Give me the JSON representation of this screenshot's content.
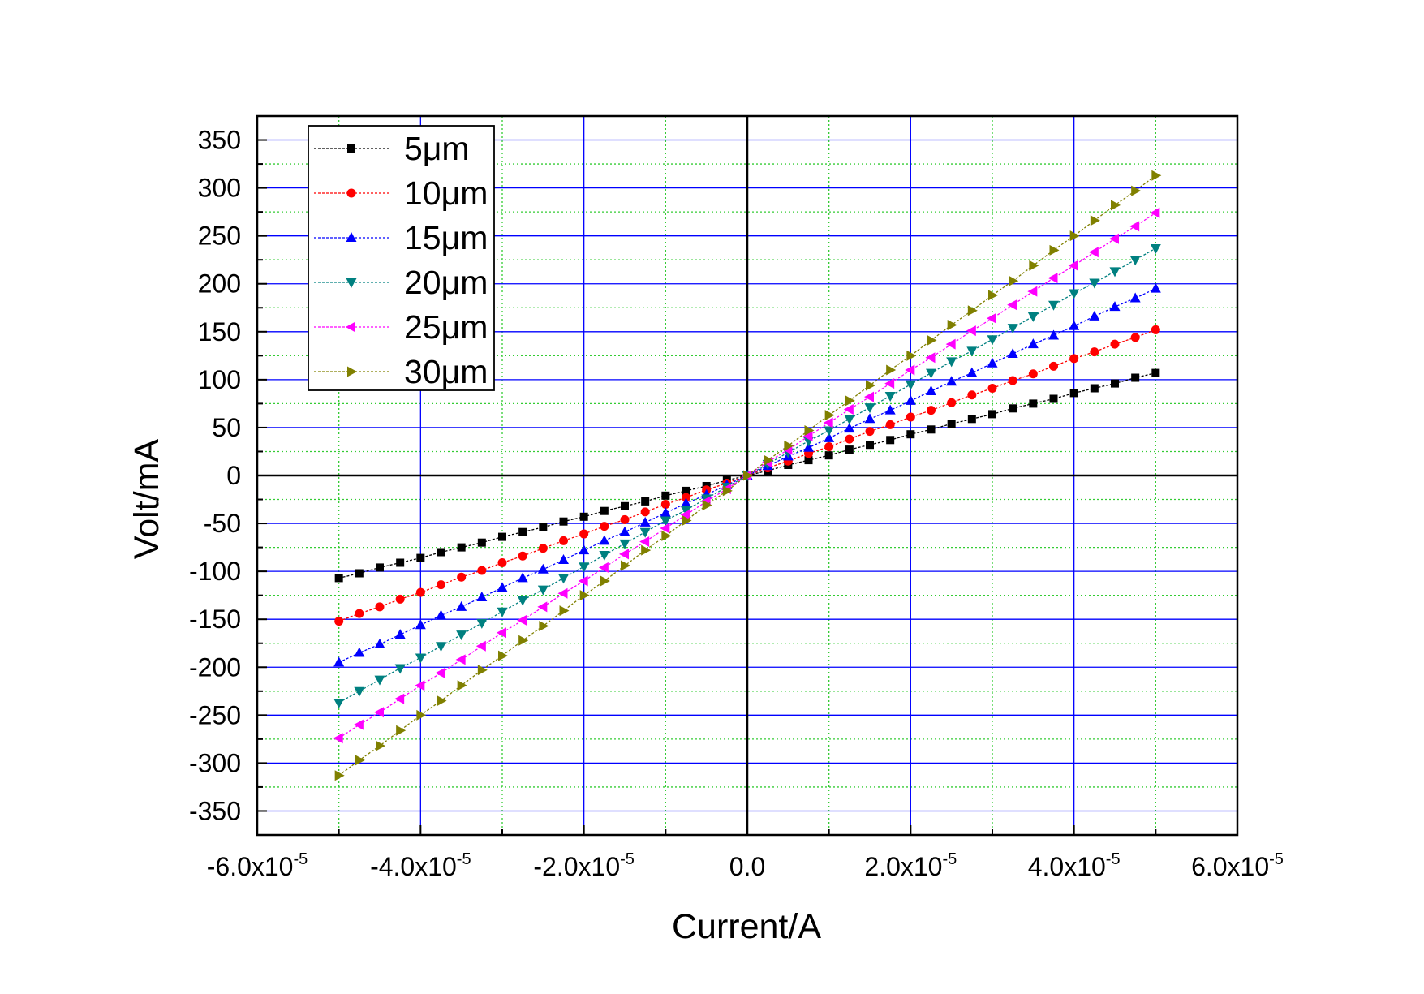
{
  "chart_data": {
    "type": "line",
    "xlabel": "Current/A",
    "ylabel": "Volt/mA",
    "xlim": [
      -6e-05,
      6e-05
    ],
    "ylim": [
      -375,
      375
    ],
    "xscale": "linear",
    "yscale": "linear",
    "grid": {
      "major": true,
      "minor": true
    },
    "legend": "top-left",
    "colors": {
      "major_grid": "#0000ff",
      "minor_grid": "#33cc33",
      "axis": "#000000"
    },
    "xticks": [
      {
        "value": -6e-05,
        "base": "-6.0x10",
        "exp": "-5"
      },
      {
        "value": -4e-05,
        "base": "-4.0x10",
        "exp": "-5"
      },
      {
        "value": -2e-05,
        "base": "-2.0x10",
        "exp": "-5"
      },
      {
        "value": 0,
        "base": "0.0",
        "exp": ""
      },
      {
        "value": 2e-05,
        "base": "2.0x10",
        "exp": "-5"
      },
      {
        "value": 4e-05,
        "base": "4.0x10",
        "exp": "-5"
      },
      {
        "value": 6e-05,
        "base": "6.0x10",
        "exp": "-5"
      }
    ],
    "yticks": [
      {
        "value": 350,
        "label": "350"
      },
      {
        "value": 300,
        "label": "300"
      },
      {
        "value": 250,
        "label": "250"
      },
      {
        "value": 200,
        "label": "200"
      },
      {
        "value": 150,
        "label": "150"
      },
      {
        "value": 100,
        "label": "100"
      },
      {
        "value": 50,
        "label": "50"
      },
      {
        "value": 0,
        "label": "0"
      },
      {
        "value": -50,
        "label": "-50"
      },
      {
        "value": -100,
        "label": "-100"
      },
      {
        "value": -150,
        "label": "-150"
      },
      {
        "value": -200,
        "label": "-200"
      },
      {
        "value": -250,
        "label": "-250"
      },
      {
        "value": -300,
        "label": "-300"
      },
      {
        "value": -350,
        "label": "-350"
      }
    ],
    "x": [
      -5e-05,
      -4.75e-05,
      -4.5e-05,
      -4.25e-05,
      -4e-05,
      -3.75e-05,
      -3.5e-05,
      -3.25e-05,
      -3e-05,
      -2.75e-05,
      -2.5e-05,
      -2.25e-05,
      -2e-05,
      -1.75e-05,
      -1.5e-05,
      -1.25e-05,
      -1e-05,
      -7.5e-06,
      -5e-06,
      -2.5e-06,
      0,
      2.5e-06,
      5e-06,
      7.5e-06,
      1e-05,
      1.25e-05,
      1.5e-05,
      1.75e-05,
      2e-05,
      2.25e-05,
      2.5e-05,
      2.75e-05,
      3e-05,
      3.25e-05,
      3.5e-05,
      3.75e-05,
      4e-05,
      4.25e-05,
      4.5e-05,
      4.75e-05,
      5e-05
    ],
    "series": [
      {
        "name": "5μm",
        "color": "#000000",
        "marker": "square",
        "values": [
          -107,
          -102,
          -96,
          -91,
          -86,
          -80,
          -75,
          -70,
          -64,
          -59,
          -54,
          -48,
          -43,
          -37,
          -32,
          -27,
          -21,
          -16,
          -11,
          -5,
          0,
          5,
          11,
          16,
          21,
          27,
          32,
          37,
          43,
          48,
          54,
          59,
          64,
          70,
          75,
          80,
          86,
          91,
          96,
          102,
          107
        ]
      },
      {
        "name": "10μm",
        "color": "#ff0000",
        "marker": "circle",
        "values": [
          -152,
          -144,
          -137,
          -129,
          -122,
          -114,
          -106,
          -99,
          -91,
          -84,
          -76,
          -68,
          -61,
          -53,
          -46,
          -38,
          -30,
          -23,
          -15,
          -8,
          0,
          8,
          15,
          23,
          30,
          38,
          46,
          53,
          61,
          68,
          76,
          84,
          91,
          99,
          106,
          114,
          122,
          129,
          137,
          144,
          152
        ]
      },
      {
        "name": "15μm",
        "color": "#0000ff",
        "marker": "triangle-up",
        "values": [
          -195,
          -185,
          -176,
          -166,
          -156,
          -146,
          -137,
          -127,
          -117,
          -107,
          -98,
          -88,
          -78,
          -68,
          -59,
          -49,
          -39,
          -29,
          -20,
          -10,
          0,
          10,
          20,
          29,
          39,
          49,
          59,
          68,
          78,
          88,
          98,
          107,
          117,
          127,
          137,
          146,
          156,
          166,
          176,
          185,
          195
        ]
      },
      {
        "name": "20μm",
        "color": "#008080",
        "marker": "triangle-down",
        "values": [
          -237,
          -225,
          -213,
          -201,
          -190,
          -178,
          -166,
          -154,
          -142,
          -130,
          -119,
          -107,
          -95,
          -83,
          -71,
          -59,
          -47,
          -36,
          -24,
          -12,
          0,
          12,
          24,
          36,
          47,
          59,
          71,
          83,
          95,
          107,
          119,
          130,
          142,
          154,
          166,
          178,
          190,
          201,
          213,
          225,
          237
        ]
      },
      {
        "name": "25μm",
        "color": "#ff00ff",
        "marker": "triangle-left",
        "values": [
          -274,
          -260,
          -247,
          -233,
          -219,
          -206,
          -192,
          -178,
          -164,
          -151,
          -137,
          -123,
          -110,
          -96,
          -82,
          -69,
          -55,
          -41,
          -27,
          -14,
          0,
          14,
          27,
          41,
          55,
          69,
          82,
          96,
          110,
          123,
          137,
          151,
          164,
          178,
          192,
          206,
          219,
          233,
          247,
          260,
          274
        ]
      },
      {
        "name": "30μm",
        "color": "#808000",
        "marker": "triangle-right",
        "values": [
          -313,
          -297,
          -282,
          -266,
          -250,
          -235,
          -219,
          -203,
          -188,
          -172,
          -157,
          -141,
          -125,
          -110,
          -94,
          -78,
          -63,
          -47,
          -31,
          -16,
          0,
          16,
          31,
          47,
          63,
          78,
          94,
          110,
          125,
          141,
          157,
          172,
          188,
          203,
          219,
          235,
          250,
          266,
          282,
          297,
          313
        ]
      }
    ]
  }
}
